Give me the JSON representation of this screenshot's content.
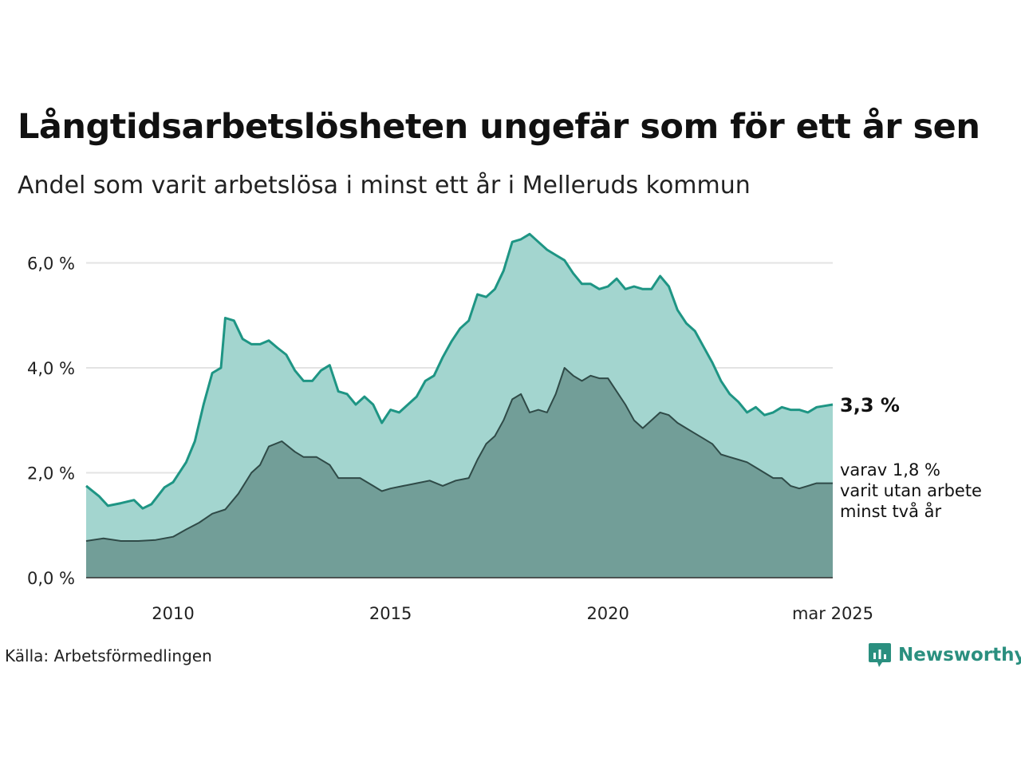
{
  "header": {
    "title": "Långtidsarbetslösheten ungefär som för ett år sen",
    "subtitle": "Andel som varit arbetslösa i minst ett år i Melleruds kommun"
  },
  "footer": {
    "source": "Källa: Arbetsförmedlingen",
    "brand": "Newsworthy"
  },
  "colors": {
    "series1_fill": "#a3d5cf",
    "series1_line": "#1e9584",
    "series2_fill": "#729e98",
    "series2_line": "#2f4a47",
    "grid": "#e3e3e3"
  },
  "chart_data": {
    "type": "area",
    "title": "Långtidsarbetslösheten ungefär som för ett år sen",
    "x_range": [
      2008.0,
      2025.17
    ],
    "y_range": [
      0,
      6.6
    ],
    "y_ticks": [
      {
        "value": 0,
        "label": "0,0 %"
      },
      {
        "value": 2,
        "label": "2,0 %"
      },
      {
        "value": 4,
        "label": "4,0 %"
      },
      {
        "value": 6,
        "label": "6,0 %"
      }
    ],
    "x_ticks": [
      {
        "value": 2010,
        "label": "2010"
      },
      {
        "value": 2015,
        "label": "2015"
      },
      {
        "value": 2020,
        "label": "2020"
      },
      {
        "value": 2025.17,
        "label": "mar 2025"
      }
    ],
    "grid": true,
    "end_value_label": "3,3 %",
    "end_note_lines": [
      "varav 1,8 %",
      "varit utan arbete",
      "minst två år"
    ],
    "series": [
      {
        "points": [
          [
            2008.0,
            1.75
          ],
          [
            2008.3,
            1.55
          ],
          [
            2008.5,
            1.37
          ],
          [
            2008.8,
            1.42
          ],
          [
            2009.1,
            1.48
          ],
          [
            2009.3,
            1.32
          ],
          [
            2009.5,
            1.4
          ],
          [
            2009.8,
            1.72
          ],
          [
            2010.0,
            1.82
          ],
          [
            2010.3,
            2.2
          ],
          [
            2010.5,
            2.6
          ],
          [
            2010.7,
            3.3
          ],
          [
            2010.9,
            3.9
          ],
          [
            2011.1,
            4.0
          ],
          [
            2011.2,
            4.95
          ],
          [
            2011.4,
            4.9
          ],
          [
            2011.6,
            4.55
          ],
          [
            2011.8,
            4.45
          ],
          [
            2012.0,
            4.45
          ],
          [
            2012.2,
            4.52
          ],
          [
            2012.4,
            4.38
          ],
          [
            2012.6,
            4.25
          ],
          [
            2012.8,
            3.95
          ],
          [
            2013.0,
            3.75
          ],
          [
            2013.2,
            3.75
          ],
          [
            2013.4,
            3.95
          ],
          [
            2013.6,
            4.05
          ],
          [
            2013.8,
            3.55
          ],
          [
            2014.0,
            3.5
          ],
          [
            2014.2,
            3.3
          ],
          [
            2014.4,
            3.45
          ],
          [
            2014.6,
            3.3
          ],
          [
            2014.8,
            2.95
          ],
          [
            2015.0,
            3.2
          ],
          [
            2015.2,
            3.15
          ],
          [
            2015.4,
            3.3
          ],
          [
            2015.6,
            3.45
          ],
          [
            2015.8,
            3.75
          ],
          [
            2016.0,
            3.85
          ],
          [
            2016.2,
            4.2
          ],
          [
            2016.4,
            4.5
          ],
          [
            2016.6,
            4.75
          ],
          [
            2016.8,
            4.9
          ],
          [
            2017.0,
            5.4
          ],
          [
            2017.2,
            5.35
          ],
          [
            2017.4,
            5.5
          ],
          [
            2017.6,
            5.85
          ],
          [
            2017.8,
            6.4
          ],
          [
            2018.0,
            6.45
          ],
          [
            2018.2,
            6.55
          ],
          [
            2018.4,
            6.4
          ],
          [
            2018.6,
            6.25
          ],
          [
            2018.8,
            6.15
          ],
          [
            2019.0,
            6.05
          ],
          [
            2019.2,
            5.8
          ],
          [
            2019.4,
            5.6
          ],
          [
            2019.6,
            5.6
          ],
          [
            2019.8,
            5.5
          ],
          [
            2020.0,
            5.55
          ],
          [
            2020.2,
            5.7
          ],
          [
            2020.4,
            5.5
          ],
          [
            2020.6,
            5.55
          ],
          [
            2020.8,
            5.5
          ],
          [
            2021.0,
            5.5
          ],
          [
            2021.2,
            5.75
          ],
          [
            2021.4,
            5.55
          ],
          [
            2021.6,
            5.1
          ],
          [
            2021.8,
            4.85
          ],
          [
            2022.0,
            4.7
          ],
          [
            2022.2,
            4.4
          ],
          [
            2022.4,
            4.1
          ],
          [
            2022.6,
            3.75
          ],
          [
            2022.8,
            3.5
          ],
          [
            2023.0,
            3.35
          ],
          [
            2023.2,
            3.15
          ],
          [
            2023.4,
            3.25
          ],
          [
            2023.6,
            3.1
          ],
          [
            2023.8,
            3.15
          ],
          [
            2024.0,
            3.25
          ],
          [
            2024.2,
            3.2
          ],
          [
            2024.4,
            3.2
          ],
          [
            2024.6,
            3.15
          ],
          [
            2024.8,
            3.25
          ],
          [
            2025.17,
            3.3
          ]
        ]
      },
      {
        "points": [
          [
            2008.0,
            0.7
          ],
          [
            2008.4,
            0.75
          ],
          [
            2008.8,
            0.7
          ],
          [
            2009.2,
            0.7
          ],
          [
            2009.6,
            0.72
          ],
          [
            2010.0,
            0.78
          ],
          [
            2010.3,
            0.92
          ],
          [
            2010.6,
            1.05
          ],
          [
            2010.9,
            1.22
          ],
          [
            2011.2,
            1.3
          ],
          [
            2011.5,
            1.6
          ],
          [
            2011.8,
            2.0
          ],
          [
            2012.0,
            2.15
          ],
          [
            2012.2,
            2.5
          ],
          [
            2012.5,
            2.6
          ],
          [
            2012.8,
            2.4
          ],
          [
            2013.0,
            2.3
          ],
          [
            2013.3,
            2.3
          ],
          [
            2013.6,
            2.15
          ],
          [
            2013.8,
            1.9
          ],
          [
            2014.0,
            1.9
          ],
          [
            2014.3,
            1.9
          ],
          [
            2014.6,
            1.75
          ],
          [
            2014.8,
            1.65
          ],
          [
            2015.0,
            1.7
          ],
          [
            2015.3,
            1.75
          ],
          [
            2015.6,
            1.8
          ],
          [
            2015.9,
            1.85
          ],
          [
            2016.2,
            1.75
          ],
          [
            2016.5,
            1.85
          ],
          [
            2016.8,
            1.9
          ],
          [
            2017.0,
            2.25
          ],
          [
            2017.2,
            2.55
          ],
          [
            2017.4,
            2.7
          ],
          [
            2017.6,
            3.0
          ],
          [
            2017.8,
            3.4
          ],
          [
            2018.0,
            3.5
          ],
          [
            2018.2,
            3.15
          ],
          [
            2018.4,
            3.2
          ],
          [
            2018.6,
            3.15
          ],
          [
            2018.8,
            3.5
          ],
          [
            2019.0,
            4.0
          ],
          [
            2019.2,
            3.85
          ],
          [
            2019.4,
            3.75
          ],
          [
            2019.6,
            3.85
          ],
          [
            2019.8,
            3.8
          ],
          [
            2020.0,
            3.8
          ],
          [
            2020.2,
            3.55
          ],
          [
            2020.4,
            3.3
          ],
          [
            2020.6,
            3.0
          ],
          [
            2020.8,
            2.85
          ],
          [
            2021.0,
            3.0
          ],
          [
            2021.2,
            3.15
          ],
          [
            2021.4,
            3.1
          ],
          [
            2021.6,
            2.95
          ],
          [
            2021.8,
            2.85
          ],
          [
            2022.0,
            2.75
          ],
          [
            2022.2,
            2.65
          ],
          [
            2022.4,
            2.55
          ],
          [
            2022.6,
            2.35
          ],
          [
            2022.8,
            2.3
          ],
          [
            2023.0,
            2.25
          ],
          [
            2023.2,
            2.2
          ],
          [
            2023.4,
            2.1
          ],
          [
            2023.6,
            2.0
          ],
          [
            2023.8,
            1.9
          ],
          [
            2024.0,
            1.9
          ],
          [
            2024.2,
            1.75
          ],
          [
            2024.4,
            1.7
          ],
          [
            2024.6,
            1.75
          ],
          [
            2024.8,
            1.8
          ],
          [
            2025.17,
            1.8
          ]
        ]
      }
    ]
  }
}
